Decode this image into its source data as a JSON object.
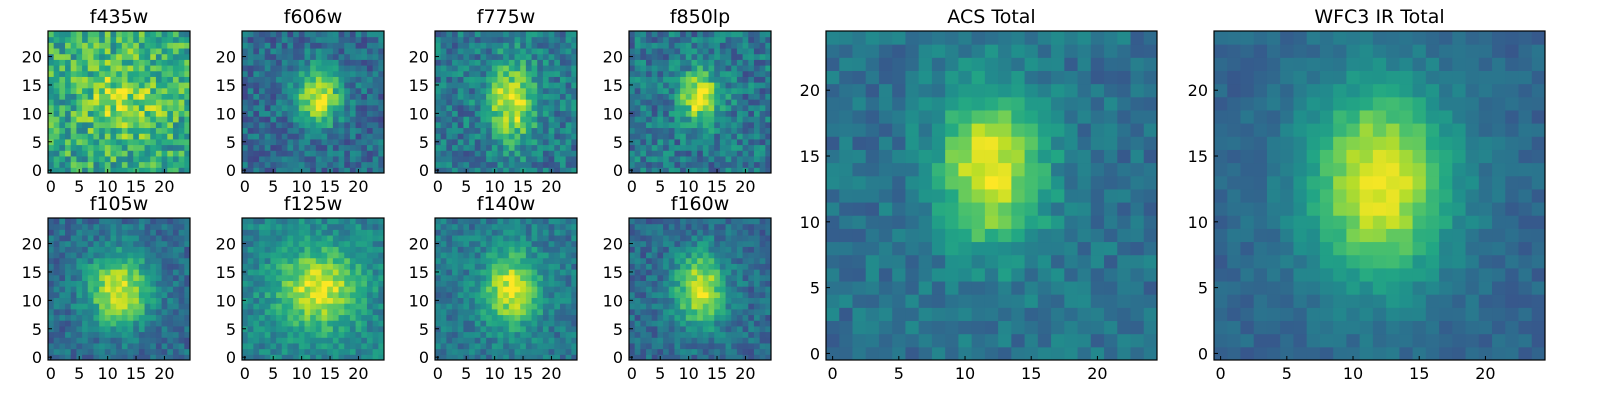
{
  "figure": {
    "background": "#ffffff"
  },
  "chart_data": [
    {
      "type": "heatmap",
      "title": "f435w",
      "grid_size": 25,
      "peak": [
        13,
        13
      ],
      "sigma": [
        5,
        5
      ],
      "amplitude": 0.25,
      "noise": 0.45,
      "base": 0.6,
      "seed": 11,
      "xticks": [
        0,
        5,
        10,
        15,
        20
      ],
      "yticks": [
        0,
        5,
        10,
        15,
        20
      ],
      "colormap": "viridis"
    },
    {
      "type": "heatmap",
      "title": "f606w",
      "grid_size": 25,
      "peak": [
        13,
        13
      ],
      "sigma": [
        2.8,
        3.6
      ],
      "amplitude": 0.6,
      "noise": 0.3,
      "base": 0.35,
      "seed": 22,
      "xticks": [
        0,
        5,
        10,
        15,
        20
      ],
      "yticks": [
        0,
        5,
        10,
        15,
        20
      ],
      "colormap": "viridis"
    },
    {
      "type": "heatmap",
      "title": "f775w",
      "grid_size": 25,
      "peak": [
        13,
        12
      ],
      "sigma": [
        3.0,
        5.0
      ],
      "amplitude": 0.55,
      "noise": 0.35,
      "base": 0.4,
      "seed": 33,
      "xticks": [
        0,
        5,
        10,
        15,
        20
      ],
      "yticks": [
        0,
        5,
        10,
        15,
        20
      ],
      "colormap": "viridis"
    },
    {
      "type": "heatmap",
      "title": "f850lp",
      "grid_size": 25,
      "peak": [
        12,
        13
      ],
      "sigma": [
        2.5,
        3.0
      ],
      "amplitude": 0.6,
      "noise": 0.35,
      "base": 0.4,
      "seed": 44,
      "xticks": [
        0,
        5,
        10,
        15,
        20
      ],
      "yticks": [
        0,
        5,
        10,
        15,
        20
      ],
      "colormap": "viridis"
    },
    {
      "type": "heatmap",
      "title": "f105w",
      "grid_size": 25,
      "peak": [
        12,
        12
      ],
      "sigma": [
        4.0,
        4.5
      ],
      "amplitude": 0.6,
      "noise": 0.25,
      "base": 0.35,
      "seed": 55,
      "xticks": [
        0,
        5,
        10,
        15,
        20
      ],
      "yticks": [
        0,
        5,
        10,
        15,
        20
      ],
      "colormap": "viridis"
    },
    {
      "type": "heatmap",
      "title": "f125w",
      "grid_size": 25,
      "peak": [
        13,
        12
      ],
      "sigma": [
        5.0,
        5.0
      ],
      "amplitude": 0.5,
      "noise": 0.25,
      "base": 0.45,
      "seed": 66,
      "xticks": [
        0,
        5,
        10,
        15,
        20
      ],
      "yticks": [
        0,
        5,
        10,
        15,
        20
      ],
      "colormap": "viridis"
    },
    {
      "type": "heatmap",
      "title": "f140w",
      "grid_size": 25,
      "peak": [
        13,
        12
      ],
      "sigma": [
        3.5,
        4.5
      ],
      "amplitude": 0.55,
      "noise": 0.25,
      "base": 0.4,
      "seed": 77,
      "xticks": [
        0,
        5,
        10,
        15,
        20
      ],
      "yticks": [
        0,
        5,
        10,
        15,
        20
      ],
      "colormap": "viridis"
    },
    {
      "type": "heatmap",
      "title": "f160w",
      "grid_size": 25,
      "peak": [
        12,
        12
      ],
      "sigma": [
        3.0,
        4.5
      ],
      "amplitude": 0.6,
      "noise": 0.25,
      "base": 0.35,
      "seed": 88,
      "xticks": [
        0,
        5,
        10,
        15,
        20
      ],
      "yticks": [
        0,
        5,
        10,
        15,
        20
      ],
      "colormap": "viridis"
    },
    {
      "type": "heatmap",
      "title": "ACS Total",
      "grid_size": 25,
      "peak": [
        12,
        14
      ],
      "sigma": [
        2.8,
        4.2
      ],
      "amplitude": 0.6,
      "noise": 0.2,
      "base": 0.38,
      "seed": 99,
      "xticks": [
        0,
        5,
        10,
        15,
        20
      ],
      "yticks": [
        0,
        5,
        10,
        15,
        20
      ],
      "colormap": "viridis"
    },
    {
      "type": "heatmap",
      "title": "WFC3 IR Total",
      "grid_size": 25,
      "peak": [
        12,
        13
      ],
      "sigma": [
        3.8,
        5.2
      ],
      "amplitude": 0.65,
      "noise": 0.12,
      "base": 0.33,
      "seed": 123,
      "xticks": [
        0,
        5,
        10,
        15,
        20
      ],
      "yticks": [
        0,
        5,
        10,
        15,
        20
      ],
      "colormap": "viridis"
    }
  ]
}
